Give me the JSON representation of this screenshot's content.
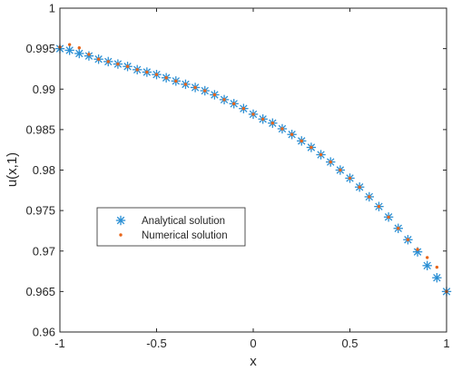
{
  "chart_data": {
    "type": "scatter",
    "xlabel": "x",
    "ylabel": "u(x,1)",
    "xlim": [
      -1,
      1
    ],
    "ylim": [
      0.96,
      1
    ],
    "x_ticks": [
      "-1",
      "-0.5",
      "0",
      "0.5",
      "1"
    ],
    "y_ticks": [
      "0.96",
      "0.965",
      "0.97",
      "0.975",
      "0.98",
      "0.985",
      "0.99",
      "0.995",
      "1"
    ],
    "grid": false,
    "legend_position": "center-left",
    "series": [
      {
        "name": "Analytical solution",
        "marker": "asterisk",
        "color": "#2a8fd4",
        "x": [
          -1.0,
          -0.95,
          -0.9,
          -0.85,
          -0.8,
          -0.75,
          -0.7,
          -0.65,
          -0.6,
          -0.55,
          -0.5,
          -0.45,
          -0.4,
          -0.35,
          -0.3,
          -0.25,
          -0.2,
          -0.15,
          -0.1,
          -0.05,
          0.0,
          0.05,
          0.1,
          0.15,
          0.2,
          0.25,
          0.3,
          0.35,
          0.4,
          0.45,
          0.5,
          0.55,
          0.6,
          0.65,
          0.7,
          0.75,
          0.8,
          0.85,
          0.9,
          0.95,
          1.0
        ],
        "y": [
          0.995,
          0.9948,
          0.9944,
          0.9941,
          0.9937,
          0.9934,
          0.9931,
          0.9928,
          0.9924,
          0.9921,
          0.9918,
          0.9914,
          0.991,
          0.9906,
          0.9902,
          0.9898,
          0.9893,
          0.9887,
          0.9882,
          0.9876,
          0.9869,
          0.9863,
          0.9858,
          0.9851,
          0.9844,
          0.9836,
          0.9828,
          0.9819,
          0.981,
          0.98,
          0.979,
          0.9779,
          0.9767,
          0.9755,
          0.9742,
          0.9728,
          0.9714,
          0.9699,
          0.9682,
          0.9667,
          0.965
        ]
      },
      {
        "name": "Numerical solution",
        "marker": "dot",
        "color": "#e8651a",
        "x": [
          -1.0,
          -0.95,
          -0.9,
          -0.85,
          -0.8,
          -0.75,
          -0.7,
          -0.65,
          -0.6,
          -0.55,
          -0.5,
          -0.45,
          -0.4,
          -0.35,
          -0.3,
          -0.25,
          -0.2,
          -0.15,
          -0.1,
          -0.05,
          0.0,
          0.05,
          0.1,
          0.15,
          0.2,
          0.25,
          0.3,
          0.35,
          0.4,
          0.45,
          0.5,
          0.55,
          0.6,
          0.65,
          0.7,
          0.75,
          0.8,
          0.85,
          0.9,
          0.95,
          1.0
        ],
        "y": [
          0.9952,
          0.9955,
          0.9951,
          0.9943,
          0.9937,
          0.9934,
          0.9931,
          0.9928,
          0.9924,
          0.9921,
          0.9918,
          0.9914,
          0.991,
          0.9906,
          0.9902,
          0.9898,
          0.9893,
          0.9887,
          0.9882,
          0.9876,
          0.9869,
          0.9863,
          0.9858,
          0.9851,
          0.9844,
          0.9836,
          0.9828,
          0.9819,
          0.981,
          0.98,
          0.979,
          0.9779,
          0.9767,
          0.9755,
          0.9742,
          0.9728,
          0.9714,
          0.9702,
          0.9692,
          0.968,
          0.965
        ]
      }
    ]
  }
}
